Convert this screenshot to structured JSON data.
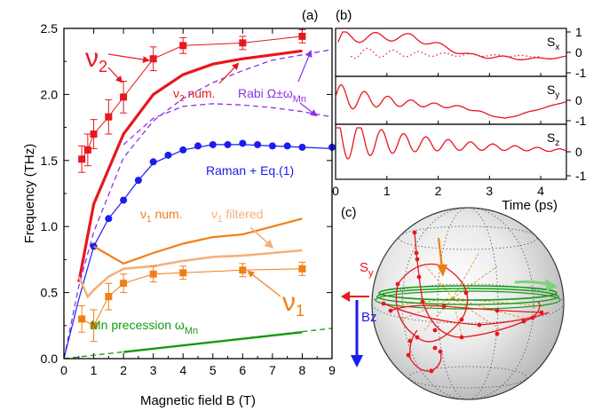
{
  "panels": {
    "a_label": "(a)",
    "b_label": "(b)",
    "c_label": "(c)"
  },
  "chart_data": [
    {
      "type": "line",
      "panel": "(a)",
      "xlabel": "Magnetic field B (T)",
      "ylabel": "Frequency (THz)",
      "xlim": [
        0,
        9
      ],
      "ylim": [
        0,
        2.5
      ],
      "xticks": [
        "0",
        "1",
        "2",
        "3",
        "4",
        "5",
        "6",
        "7",
        "8",
        "9"
      ],
      "yticks": [
        "0.0",
        "0.5",
        "1.0",
        "1.5",
        "2.0",
        "2.5"
      ],
      "annotations": {
        "nu2_sym": "ν",
        "nu2_sub": "2",
        "nu2_num_text": "ν",
        "nu2_num_sub": "2",
        "nu2_num_tail": " num.",
        "rabi_text": "Rabi Ω±ω",
        "rabi_sub": "Mn",
        "raman_text": "Raman + Eq.(1)",
        "nu1_num_text": "ν",
        "nu1_num_sub": "1",
        "nu1_num_tail": " num.",
        "nu1_filt_text": "ν",
        "nu1_filt_sub": "1",
        "nu1_filt_tail": " filtered",
        "nu1_sym": "ν",
        "nu1_sub": "1",
        "mn_text": "Mn precession ω",
        "mn_sub": "Mn"
      },
      "colors": {
        "red": "#e8161e",
        "blue": "#1c1cf0",
        "orange": "#f07f14",
        "light_orange": "#f5b07c",
        "green": "#139a13",
        "violet": "#8f30e8"
      },
      "series": [
        {
          "key": "nu2_data",
          "kind": "markers_errors",
          "marker": "square",
          "color": "#e8161e",
          "points": [
            [
              0.6,
              1.51,
              0.1
            ],
            [
              0.8,
              1.58,
              0.12
            ],
            [
              1.0,
              1.7,
              0.11
            ],
            [
              1.5,
              1.83,
              0.13
            ],
            [
              2.0,
              1.98,
              0.12
            ],
            [
              3.0,
              2.27,
              0.09
            ],
            [
              4.0,
              2.37,
              0.06
            ],
            [
              6.0,
              2.39,
              0.05
            ],
            [
              8.0,
              2.44,
              0.05
            ]
          ]
        },
        {
          "key": "nu2_num",
          "kind": "line",
          "color": "#e8161e",
          "points": [
            [
              0.5,
              0.58
            ],
            [
              1.0,
              1.17
            ],
            [
              2.0,
              1.7
            ],
            [
              3.0,
              2.0
            ],
            [
              4.0,
              2.15
            ],
            [
              5.0,
              2.23
            ],
            [
              6.0,
              2.27
            ],
            [
              7.0,
              2.3
            ],
            [
              8.0,
              2.33
            ]
          ]
        },
        {
          "key": "rabi_plus",
          "kind": "dashed",
          "color": "#8f30e8",
          "points": [
            [
              0.0,
              0.0
            ],
            [
              0.5,
              0.55
            ],
            [
              1.0,
              0.96
            ],
            [
              2.0,
              1.52
            ],
            [
              3.0,
              1.8
            ],
            [
              4.0,
              1.97
            ],
            [
              5.0,
              2.09
            ],
            [
              6.0,
              2.18
            ],
            [
              7.0,
              2.26
            ],
            [
              8.0,
              2.3
            ],
            [
              9.0,
              2.34
            ]
          ]
        },
        {
          "key": "rabi_minus",
          "kind": "dashed",
          "color": "#8f30e8",
          "points": [
            [
              2.0,
              1.62
            ],
            [
              3.0,
              1.82
            ],
            [
              4.0,
              1.91
            ],
            [
              5.0,
              1.93
            ],
            [
              6.0,
              1.92
            ],
            [
              7.0,
              1.9
            ],
            [
              8.0,
              1.87
            ],
            [
              9.0,
              1.83
            ]
          ]
        },
        {
          "key": "raman_data",
          "kind": "markers",
          "marker": "circle",
          "color": "#1c1cf0",
          "points": [
            [
              1.0,
              0.85
            ],
            [
              1.5,
              1.06
            ],
            [
              2.0,
              1.2
            ],
            [
              2.5,
              1.35
            ],
            [
              3.0,
              1.49
            ],
            [
              3.5,
              1.54
            ],
            [
              4.0,
              1.58
            ],
            [
              4.5,
              1.61
            ],
            [
              5.0,
              1.62
            ],
            [
              5.5,
              1.62
            ],
            [
              6.0,
              1.63
            ],
            [
              6.5,
              1.62
            ],
            [
              7.0,
              1.61
            ],
            [
              7.5,
              1.61
            ],
            [
              8.0,
              1.6
            ],
            [
              9.0,
              1.6
            ]
          ]
        },
        {
          "key": "raman_fit",
          "kind": "line",
          "color": "#1c1cf0",
          "points": [
            [
              0.0,
              0.0
            ],
            [
              0.5,
              0.45
            ],
            [
              1.0,
              0.85
            ],
            [
              1.5,
              1.06
            ],
            [
              2.0,
              1.2
            ],
            [
              2.5,
              1.35
            ],
            [
              3.0,
              1.48
            ],
            [
              4.0,
              1.58
            ],
            [
              5.0,
              1.62
            ],
            [
              6.0,
              1.62
            ],
            [
              7.0,
              1.61
            ],
            [
              8.0,
              1.6
            ],
            [
              9.0,
              1.59
            ]
          ]
        },
        {
          "key": "nu1_num",
          "kind": "line",
          "color": "#f07f14",
          "points": [
            [
              1.0,
              0.85
            ],
            [
              2.0,
              0.72
            ],
            [
              3.0,
              0.8
            ],
            [
              4.0,
              0.87
            ],
            [
              5.0,
              0.92
            ],
            [
              6.0,
              0.94
            ],
            [
              7.0,
              1.0
            ],
            [
              8.0,
              1.06
            ]
          ]
        },
        {
          "key": "nu1_filtered",
          "kind": "line",
          "color": "#f5b07c",
          "points": [
            [
              0.5,
              0.62
            ],
            [
              0.8,
              0.47
            ],
            [
              1.0,
              0.52
            ],
            [
              1.5,
              0.62
            ],
            [
              2.0,
              0.68
            ],
            [
              3.0,
              0.7
            ],
            [
              4.0,
              0.74
            ],
            [
              5.0,
              0.77
            ],
            [
              6.0,
              0.78
            ],
            [
              7.0,
              0.8
            ],
            [
              8.0,
              0.82
            ]
          ]
        },
        {
          "key": "nu1_data",
          "kind": "markers_errors",
          "marker": "square",
          "color": "#f07f14",
          "points": [
            [
              0.6,
              0.3,
              0.1
            ],
            [
              1.0,
              0.25,
              0.12
            ],
            [
              1.5,
              0.47,
              0.1
            ],
            [
              2.0,
              0.57,
              0.07
            ],
            [
              3.0,
              0.64,
              0.06
            ],
            [
              4.0,
              0.65,
              0.05
            ],
            [
              6.0,
              0.67,
              0.05
            ],
            [
              8.0,
              0.68,
              0.05
            ]
          ]
        },
        {
          "key": "mn_dashed",
          "kind": "dashed",
          "color": "#139a13",
          "points": [
            [
              0.0,
              0.0
            ],
            [
              9.0,
              0.23
            ]
          ]
        },
        {
          "key": "mn_line",
          "kind": "line",
          "color": "#139a13",
          "points": [
            [
              2.0,
              0.05
            ],
            [
              8.0,
              0.2
            ]
          ]
        }
      ]
    },
    {
      "type": "line",
      "panel": "(b)",
      "xlabel": "Time (ps)",
      "xlim": [
        0,
        4.5
      ],
      "xticks": [
        "0",
        "1",
        "2",
        "3",
        "4"
      ],
      "subplots": [
        {
          "label": "S",
          "sub": "x",
          "yticks": [
            "1",
            "0",
            "-1"
          ],
          "ylim": [
            -1,
            1
          ]
        },
        {
          "label": "S",
          "sub": "y",
          "yticks": [
            "0",
            "-1"
          ],
          "ylim": [
            -1,
            1
          ]
        },
        {
          "label": "S",
          "sub": "z",
          "yticks": [
            "0",
            "-1"
          ],
          "ylim": [
            -1,
            1
          ]
        }
      ]
    },
    {
      "type": "diagram",
      "panel": "(c)",
      "labels": {
        "sy_text": "S",
        "sy_sub": "y",
        "bz_text": "Bz"
      }
    }
  ]
}
